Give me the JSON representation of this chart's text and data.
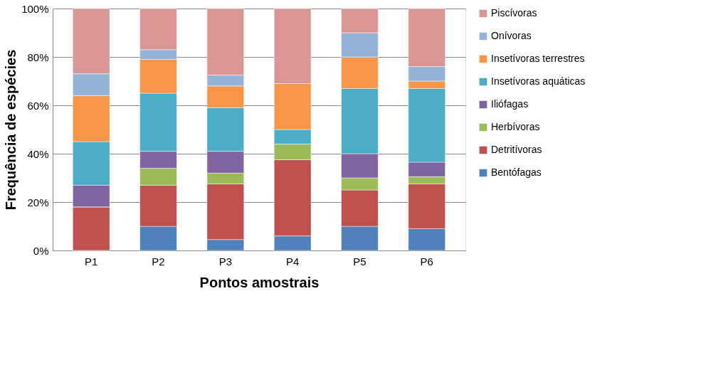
{
  "chart_data": {
    "type": "bar",
    "stacked": true,
    "xlabel": "Pontos amostrais",
    "ylabel": "Frequência de espécies",
    "categories": [
      "P1",
      "P2",
      "P3",
      "P4",
      "P5",
      "P6"
    ],
    "series": [
      {
        "name": "Bentófagas",
        "color": "#4f81bd",
        "values": [
          0,
          10,
          4.5,
          6,
          10,
          9
        ]
      },
      {
        "name": "Detritívoras",
        "color": "#c0504d",
        "values": [
          18,
          17,
          23,
          31.5,
          15,
          18.5
        ]
      },
      {
        "name": "Herbívoras",
        "color": "#9bbb59",
        "values": [
          0,
          7,
          4.5,
          6.5,
          5,
          3
        ]
      },
      {
        "name": "Iliófagas",
        "color": "#8064a2",
        "values": [
          9,
          7,
          9,
          0,
          10,
          6
        ]
      },
      {
        "name": "Insetívoras aquáticas",
        "color": "#4bacc6",
        "values": [
          18,
          24,
          18,
          6,
          27,
          30.5
        ]
      },
      {
        "name": "Insetívoras terrestres",
        "color": "#f79646",
        "values": [
          19,
          14,
          9,
          19,
          13,
          3
        ]
      },
      {
        "name": "Onívoras",
        "color": "#95b3d7",
        "values": [
          9,
          4,
          4.5,
          0,
          10,
          6
        ]
      },
      {
        "name": "Piscívoras",
        "color": "#d99694",
        "values": [
          27,
          17,
          27.5,
          31,
          10,
          24
        ]
      }
    ],
    "ylim": [
      0,
      100
    ],
    "yticks": [
      {
        "value": 0,
        "label": "0%"
      },
      {
        "value": 20,
        "label": "20%"
      },
      {
        "value": 40,
        "label": "40%"
      },
      {
        "value": 60,
        "label": "60%"
      },
      {
        "value": 80,
        "label": "80%"
      },
      {
        "value": 100,
        "label": "100%"
      }
    ],
    "grid": "y",
    "legend": "right"
  }
}
